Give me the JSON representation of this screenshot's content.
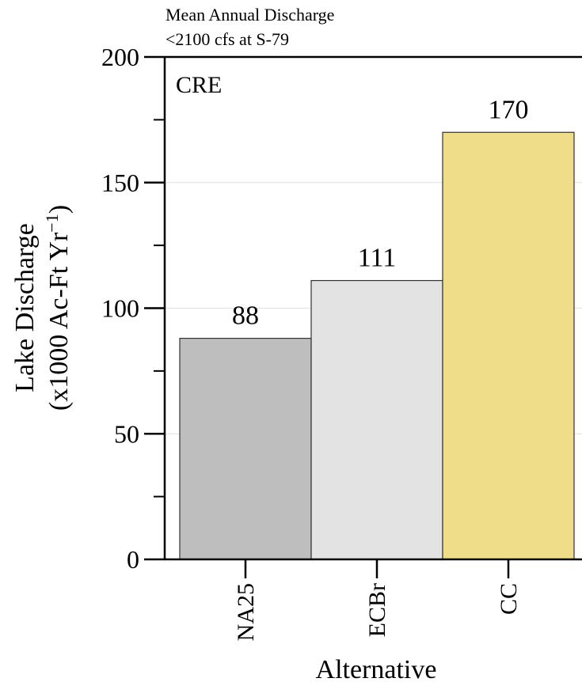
{
  "chart_data": {
    "type": "bar",
    "title": "Mean Annual Discharge",
    "subtitle": "<2100 cfs at S-79",
    "panel_label": "CRE",
    "categories": [
      "NA25",
      "ECBr",
      "CC"
    ],
    "values": [
      88,
      111,
      170
    ],
    "data_labels": [
      "88",
      "111",
      "170"
    ],
    "bar_colors": [
      "#bebebe",
      "#e3e3e3",
      "#efdd8a"
    ],
    "xlabel": "Alternative",
    "ylabel_line1": "Lake Discharge",
    "ylabel_line2": "(x1000 Ac-Ft Yr",
    "ylabel_sup": "−1",
    "ylabel_close": ")",
    "ylim": [
      0,
      200
    ],
    "yticks": [
      0,
      50,
      100,
      150,
      200
    ],
    "ytick_labels": [
      "0",
      "50",
      "100",
      "150",
      "200"
    ],
    "grid": true,
    "grid_color": "#e0e0e0",
    "legend": "none"
  }
}
